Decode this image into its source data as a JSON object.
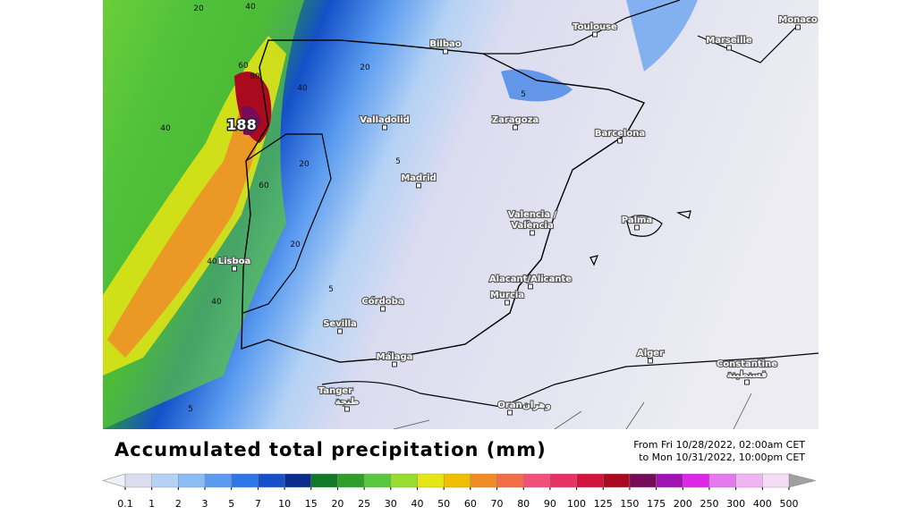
{
  "title": "Accumulated total precipitation (mm)",
  "period": {
    "from": "From Fri 10/28/2022, 02:00am CET",
    "to": "to Mon 10/31/2022, 10:00pm CET"
  },
  "cities": [
    "Toulouse",
    "Marseille",
    "Monaco",
    "Bilbao",
    "Valladolid",
    "Zaragoza",
    "Barcelona",
    "Madrid",
    "Valencia /",
    "València",
    "Palma",
    "Lisboa",
    "Alacant/Alicante",
    "Murcia",
    "Córdoba",
    "Sevilla",
    "Málaga",
    "Alger",
    "Constantine",
    "قسنطينة",
    "Tanger",
    "طنجة",
    "Oran",
    "وهران"
  ],
  "contour_labels": [
    "20",
    "40",
    "60",
    "80",
    "40",
    "188",
    "40",
    "20",
    "5",
    "5",
    "20",
    "60",
    "20",
    "40",
    "5",
    "40",
    "5"
  ],
  "colorbar": {
    "labels": [
      "0.1",
      "1",
      "2",
      "3",
      "5",
      "7",
      "10",
      "15",
      "20",
      "25",
      "30",
      "40",
      "50",
      "60",
      "70",
      "80",
      "90",
      "100",
      "125",
      "150",
      "175",
      "200",
      "250",
      "300",
      "400",
      "500"
    ],
    "colors": [
      "#dcdcf0",
      "#b4d2f5",
      "#8cbcf5",
      "#5a9bf0",
      "#2d78e6",
      "#1450c8",
      "#0a2d8c",
      "#117a2a",
      "#2ea02a",
      "#5ac83c",
      "#96dc32",
      "#e6e614",
      "#f0c000",
      "#f08c28",
      "#f06e46",
      "#f0507a",
      "#e63264",
      "#d2143c",
      "#aa0a1e",
      "#780a5a",
      "#a014b4",
      "#dc28e6",
      "#e678f0",
      "#f0b4f5",
      "#f5dcf5"
    ],
    "under_color": "#f0f0f8",
    "over_color": "#a0a0a0"
  }
}
